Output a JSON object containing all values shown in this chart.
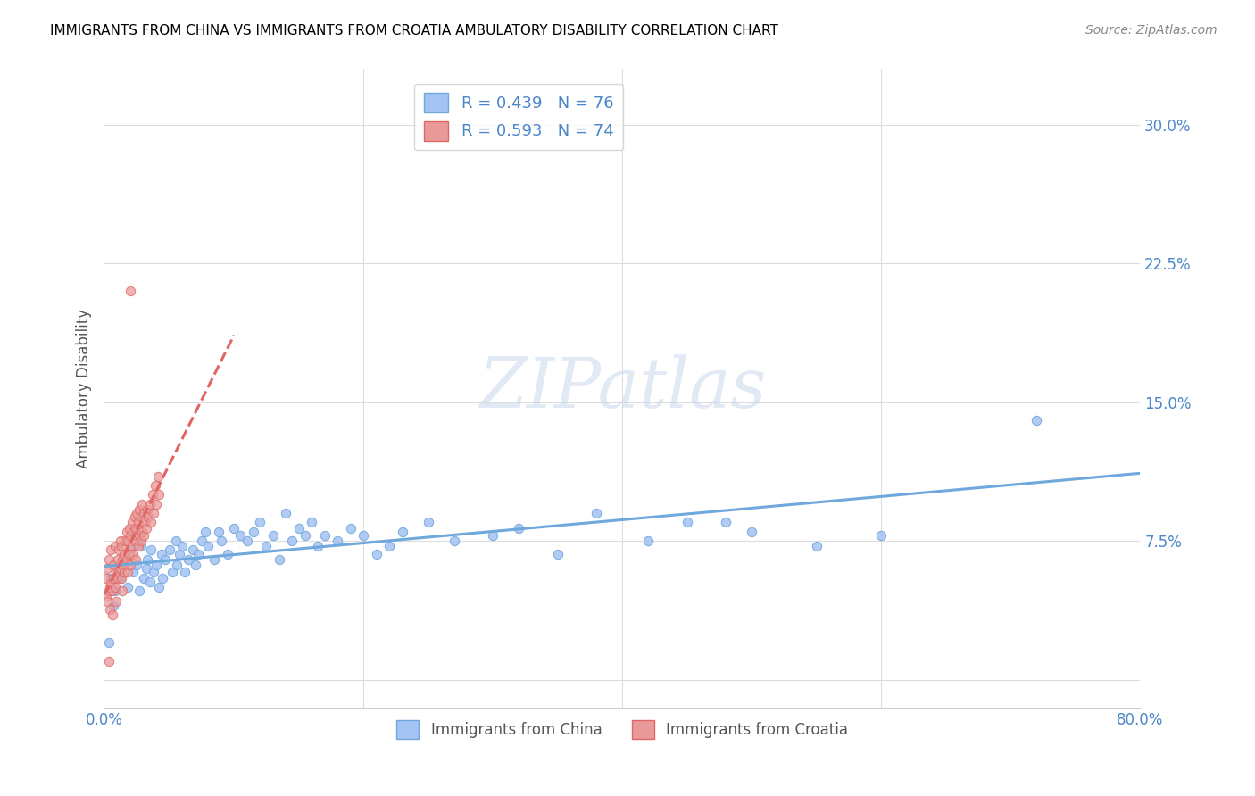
{
  "title": "IMMIGRANTS FROM CHINA VS IMMIGRANTS FROM CROATIA AMBULATORY DISABILITY CORRELATION CHART",
  "source": "Source: ZipAtlas.com",
  "ylabel": "Ambulatory Disability",
  "ytick_labels": [
    "",
    "7.5%",
    "15.0%",
    "22.5%",
    "30.0%"
  ],
  "ytick_values": [
    0.0,
    0.075,
    0.15,
    0.225,
    0.3
  ],
  "xlim": [
    0.0,
    0.8
  ],
  "ylim": [
    -0.015,
    0.33
  ],
  "china_color": "#6fa8dc",
  "china_color_fill": "#a4c2f4",
  "croatia_color_edge": "#e06666",
  "croatia_color_fill": "#ea9999",
  "china_R": 0.439,
  "china_N": 76,
  "croatia_R": 0.593,
  "croatia_N": 74,
  "legend_label_china": "Immigrants from China",
  "legend_label_croatia": "Immigrants from Croatia",
  "watermark": "ZIPatlas",
  "background_color": "#ffffff",
  "grid_color": "#dddddd",
  "title_color": "#000000",
  "axis_label_color": "#555555",
  "legend_text_color": "#4a86c8"
}
